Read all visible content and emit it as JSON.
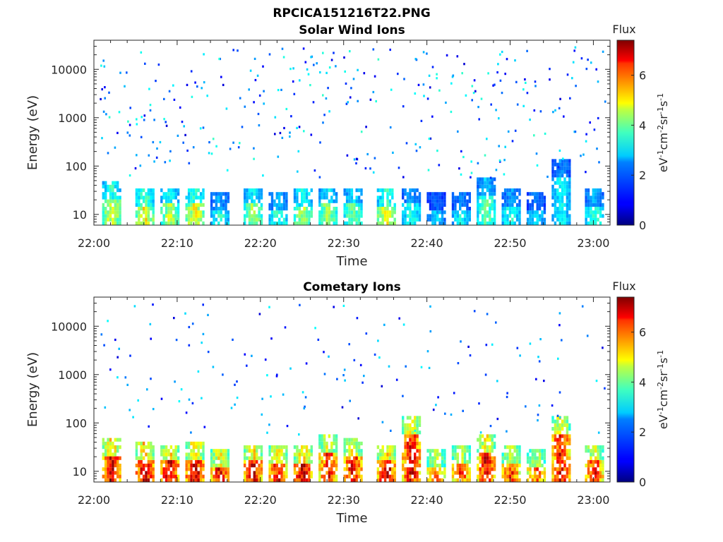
{
  "figure": {
    "title": "RPCICA151216T22.PNG"
  },
  "chart_data": [
    {
      "type": "heatmap",
      "title": "Solar Wind Ions",
      "xlabel": "Time",
      "ylabel": "Energy (eV)",
      "x_range": [
        "22:00",
        "23:02"
      ],
      "x_ticks": [
        "22:00",
        "22:10",
        "22:20",
        "22:30",
        "22:40",
        "22:50",
        "23:00"
      ],
      "y_scale": "log",
      "y_range": [
        6,
        40000
      ],
      "y_ticks": [
        10,
        100,
        1000,
        10000
      ],
      "y_tick_labels": [
        "10",
        "100",
        "1000",
        "10000"
      ],
      "colorbar": {
        "title": "Flux",
        "label": "eV-1cm-2sr-1s-1",
        "range": [
          0,
          7.4
        ],
        "ticks": [
          0,
          2,
          4,
          6
        ],
        "colormap": "jet"
      },
      "bursts": [
        {
          "t": "22:02",
          "e_max": 50,
          "level": 4.0
        },
        {
          "t": "22:06",
          "e_max": 35,
          "level": 4.3
        },
        {
          "t": "22:09",
          "e_max": 40,
          "level": 3.8
        },
        {
          "t": "22:12",
          "e_max": 40,
          "level": 4.2
        },
        {
          "t": "22:15",
          "e_max": 30,
          "level": 2.8
        },
        {
          "t": "22:19",
          "e_max": 40,
          "level": 3.6
        },
        {
          "t": "22:22",
          "e_max": 30,
          "level": 3.0
        },
        {
          "t": "22:25",
          "e_max": 35,
          "level": 3.8
        },
        {
          "t": "22:28",
          "e_max": 40,
          "level": 3.6
        },
        {
          "t": "22:31",
          "e_max": 40,
          "level": 3.4
        },
        {
          "t": "22:35",
          "e_max": 35,
          "level": 4.2
        },
        {
          "t": "22:38",
          "e_max": 40,
          "level": 2.8
        },
        {
          "t": "22:41",
          "e_max": 30,
          "level": 2.2
        },
        {
          "t": "22:44",
          "e_max": 30,
          "level": 2.6
        },
        {
          "t": "22:47",
          "e_max": 60,
          "level": 3.2
        },
        {
          "t": "22:50",
          "e_max": 35,
          "level": 2.8
        },
        {
          "t": "22:53",
          "e_max": 30,
          "level": 2.4
        },
        {
          "t": "22:56",
          "e_max": 150,
          "level": 2.6
        },
        {
          "t": "23:00",
          "e_max": 35,
          "level": 3.0
        }
      ]
    },
    {
      "type": "heatmap",
      "title": "Cometary Ions",
      "xlabel": "Time",
      "ylabel": "Energy (eV)",
      "x_range": [
        "22:00",
        "23:02"
      ],
      "x_ticks": [
        "22:00",
        "22:10",
        "22:20",
        "22:30",
        "22:40",
        "22:50",
        "23:00"
      ],
      "y_scale": "log",
      "y_range": [
        6,
        40000
      ],
      "y_ticks": [
        10,
        100,
        1000,
        10000
      ],
      "y_tick_labels": [
        "10",
        "100",
        "1000",
        "10000"
      ],
      "colorbar": {
        "title": "Flux",
        "label": "eV-1cm-2sr-1s-1",
        "range": [
          0,
          7.4
        ],
        "ticks": [
          0,
          2,
          4,
          6
        ],
        "colormap": "jet"
      },
      "bursts": [
        {
          "t": "22:02",
          "e_max": 50,
          "level": 6.4
        },
        {
          "t": "22:06",
          "e_max": 45,
          "level": 6.5
        },
        {
          "t": "22:09",
          "e_max": 40,
          "level": 6.3
        },
        {
          "t": "22:12",
          "e_max": 45,
          "level": 6.4
        },
        {
          "t": "22:15",
          "e_max": 30,
          "level": 6.0
        },
        {
          "t": "22:19",
          "e_max": 40,
          "level": 6.2
        },
        {
          "t": "22:22",
          "e_max": 35,
          "level": 6.0
        },
        {
          "t": "22:25",
          "e_max": 35,
          "level": 6.4
        },
        {
          "t": "22:28",
          "e_max": 60,
          "level": 5.8
        },
        {
          "t": "22:31",
          "e_max": 50,
          "level": 6.0
        },
        {
          "t": "22:35",
          "e_max": 40,
          "level": 6.4
        },
        {
          "t": "22:38",
          "e_max": 150,
          "level": 6.1
        },
        {
          "t": "22:41",
          "e_max": 30,
          "level": 5.4
        },
        {
          "t": "22:44",
          "e_max": 35,
          "level": 5.6
        },
        {
          "t": "22:47",
          "e_max": 60,
          "level": 6.0
        },
        {
          "t": "22:50",
          "e_max": 35,
          "level": 5.6
        },
        {
          "t": "22:53",
          "e_max": 30,
          "level": 5.4
        },
        {
          "t": "22:56",
          "e_max": 150,
          "level": 6.0
        },
        {
          "t": "23:00",
          "e_max": 40,
          "level": 5.8
        }
      ]
    }
  ]
}
